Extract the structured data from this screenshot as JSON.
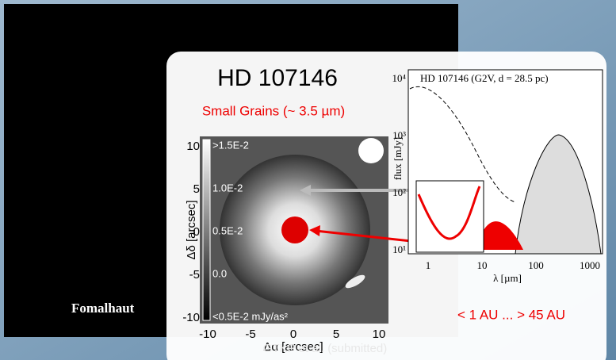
{
  "slide": {
    "title": "HD 107146",
    "subtitle": "Small Grains (~ 3.5 µm)",
    "left_caption": "Fomalhaut",
    "credit": "GTKP et al. (submitted)",
    "range_note": "< 1 AU ... > 45 AU",
    "image": {
      "x_label": "Δα [arcsec]",
      "y_label": "Δδ [arcsec]",
      "x_ticks": [
        "-10",
        "-5",
        "0",
        "5",
        "10"
      ],
      "y_ticks": [
        "10",
        "5",
        "0",
        "-5",
        "-10"
      ],
      "colorbar": [
        ">1.5E-2",
        "1.0E-2",
        "0.5E-2",
        "0.0",
        "<0.5E-2 mJy/as²"
      ]
    },
    "sed": {
      "title": "HD 107146 (G2V, d = 28.5 pc)",
      "x_label": "λ [µm]",
      "y_label": "flux [mJy]",
      "x_ticks": [
        "1",
        "10",
        "100",
        "1000"
      ],
      "y_ticks": [
        "10⁴",
        "10³",
        "10²",
        "10¹"
      ]
    }
  }
}
